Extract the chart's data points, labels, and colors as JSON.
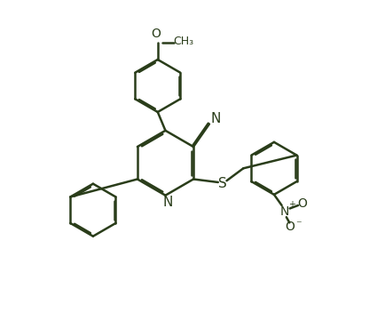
{
  "bg_color": "#ffffff",
  "line_color": "#2a3d1a",
  "line_width": 1.8,
  "dbo": 0.055,
  "font_size": 10,
  "figsize": [
    4.25,
    3.7
  ],
  "dpi": 100,
  "xlim": [
    -1.0,
    9.5
  ],
  "ylim": [
    -1.5,
    9.0
  ]
}
